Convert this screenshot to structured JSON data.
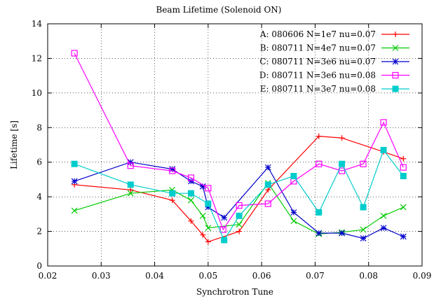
{
  "chart_data": {
    "type": "line",
    "title": "Beam Lifetime (Solenoid ON)",
    "xlabel": "Synchrotron Tune",
    "ylabel": "Lifetime [s]",
    "xlim": [
      0.02,
      0.09
    ],
    "ylim": [
      0,
      14
    ],
    "x_ticks": [
      "0.02",
      "0.03",
      "0.04",
      "0.05",
      "0.06",
      "0.07",
      "0.08",
      "0.09"
    ],
    "y_ticks": [
      "0",
      "2",
      "4",
      "6",
      "8",
      "10",
      "12",
      "14"
    ],
    "grid": true,
    "legend_position": "top-right",
    "series": [
      {
        "name": "A: 080606 N=1e7 nu=0.07",
        "color": "#ff0000",
        "marker": "plus",
        "x": [
          0.025,
          0.0355,
          0.0433,
          0.0468,
          0.049,
          0.05,
          0.0558,
          0.0612,
          0.0707,
          0.075,
          0.0828,
          0.0865
        ],
        "y": [
          4.7,
          4.4,
          3.8,
          2.6,
          1.8,
          1.4,
          2.0,
          4.4,
          7.5,
          7.4,
          6.6,
          6.2
        ]
      },
      {
        "name": "B: 080711 N=4e7 nu=0.07",
        "color": "#00cc00",
        "marker": "cross",
        "x": [
          0.025,
          0.0355,
          0.0433,
          0.0468,
          0.049,
          0.05,
          0.0558,
          0.0612,
          0.066,
          0.0707,
          0.075,
          0.079,
          0.0828,
          0.0865
        ],
        "y": [
          3.2,
          4.2,
          4.4,
          3.8,
          2.9,
          2.2,
          2.4,
          4.8,
          2.6,
          1.85,
          1.95,
          2.1,
          2.9,
          3.4
        ]
      },
      {
        "name": "C: 080711 N=3e6 nu=0.07",
        "color": "#0000cc",
        "marker": "star",
        "x": [
          0.025,
          0.0355,
          0.0433,
          0.0468,
          0.049,
          0.05,
          0.053,
          0.0612,
          0.066,
          0.0707,
          0.075,
          0.079,
          0.0828,
          0.0865
        ],
        "y": [
          4.9,
          6.0,
          5.6,
          4.9,
          4.6,
          3.4,
          2.8,
          5.7,
          3.1,
          1.9,
          1.9,
          1.6,
          2.2,
          1.7
        ]
      },
      {
        "name": "D: 080711 N=3e6 nu=0.08",
        "color": "#ff00ff",
        "marker": "square",
        "x": [
          0.025,
          0.0355,
          0.0433,
          0.0468,
          0.05,
          0.0528,
          0.0558,
          0.0612,
          0.066,
          0.0707,
          0.075,
          0.079,
          0.0828,
          0.0865
        ],
        "y": [
          12.3,
          5.8,
          5.5,
          5.1,
          4.5,
          2.1,
          3.5,
          3.6,
          4.9,
          5.9,
          5.5,
          5.9,
          8.3,
          5.7
        ]
      },
      {
        "name": "E: 080711 N=3e7 nu=0.08",
        "color": "#00cccc",
        "marker": "filled-square",
        "x": [
          0.025,
          0.0355,
          0.0433,
          0.0468,
          0.05,
          0.053,
          0.0558,
          0.0612,
          0.066,
          0.0707,
          0.075,
          0.079,
          0.0828,
          0.0865
        ],
        "y": [
          5.9,
          4.7,
          4.2,
          4.2,
          3.6,
          1.5,
          2.9,
          4.7,
          5.2,
          3.1,
          5.9,
          3.4,
          6.7,
          5.2
        ]
      }
    ]
  }
}
